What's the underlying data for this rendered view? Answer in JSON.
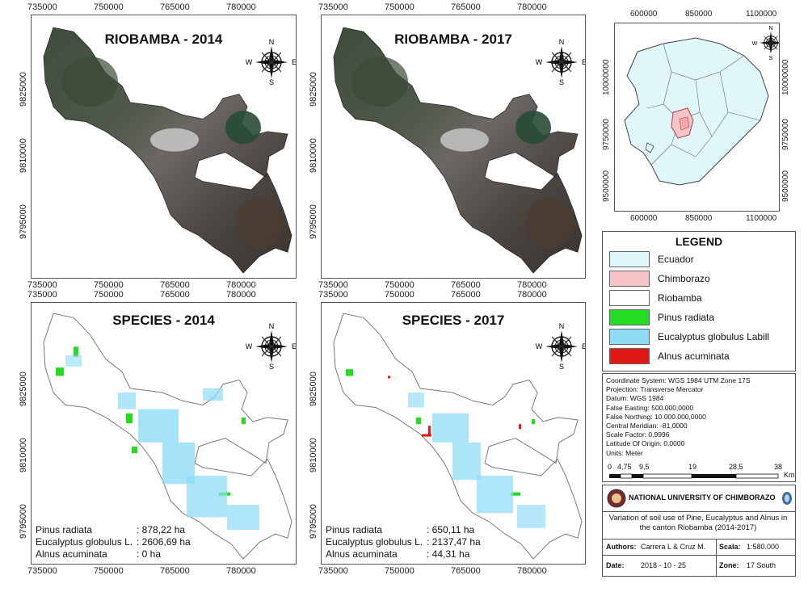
{
  "maps": {
    "sat2014": {
      "title": "RIOBAMBA - 2014"
    },
    "sat2017": {
      "title": "RIOBAMBA - 2017"
    },
    "sp2014": {
      "title": "SPECIES - 2014",
      "stats": [
        {
          "name": "Pinus radiata",
          "value": ": 878,22  ha"
        },
        {
          "name": "Eucalyptus globulus L.",
          "value": ": 2606,69  ha"
        },
        {
          "name": "Alnus acuminata",
          "value": ":  0  ha"
        }
      ]
    },
    "sp2017": {
      "title": "SPECIES - 2017",
      "stats": [
        {
          "name": "Pinus radiata",
          "value": ": 650,11  ha"
        },
        {
          "name": "Eucalyptus globulus L.",
          "value": ": 2137,47  ha"
        },
        {
          "name": "Alnus acuminata",
          "value": ": 44,31  ha"
        }
      ]
    }
  },
  "axes": {
    "x_ticks": [
      "735000",
      "750000",
      "765000",
      "780000"
    ],
    "y_ticks": [
      "9825000",
      "9810000",
      "9795000"
    ],
    "inset_x_ticks": [
      "600000",
      "850000",
      "1100000"
    ],
    "inset_y_ticks": [
      "10000000",
      "9750000",
      "9500000"
    ]
  },
  "compass": {
    "n": "N",
    "s": "S",
    "e": "E",
    "w": "W"
  },
  "legend": {
    "title": "LEGEND",
    "items": [
      {
        "label": "Ecuador",
        "color": "#dff6fb"
      },
      {
        "label": "Chimborazo",
        "color": "#f6c4c6"
      },
      {
        "label": "Riobamba",
        "color": "#ffffff"
      },
      {
        "label": "Pinus radiata",
        "color": "#22dd22"
      },
      {
        "label": "Eucalyptus globulus Labill",
        "color": "#8fdcf6"
      },
      {
        "label": "Alnus acuminata",
        "color": "#e01818"
      }
    ]
  },
  "projection": {
    "lines": [
      "Coordinate System: WGS 1984 UTM Zone 17S",
      "Projection: Transverse Mercator",
      "Datum: WGS 1984",
      "False Easting: 500.000,0000",
      "False Northing: 10.000.000,0000",
      "Central Meridian: -81,0000",
      "Scale Factor: 0,9996",
      "Latitude Of Origin: 0,0000",
      "Units: Meter"
    ]
  },
  "scalebar": {
    "labels": [
      "0",
      "4,75",
      "9,5",
      "19",
      "28,5",
      "38"
    ],
    "unit": "Km"
  },
  "info": {
    "university": "NATIONAL UNIVERSITY OF CHIMBORAZO",
    "description": "Variation of soil use of Pine, Eucalyptus and Alnus in the canton Riobamba (2014-2017)",
    "authors_label": "Authors:",
    "authors": "Carrera L & Cruz M.",
    "scale_label": "Scala:",
    "scale": "1:580.000",
    "date_label": "Date:",
    "date": "2018 - 10 - 25",
    "zone_label": "Zone:",
    "zone": "17 South"
  },
  "colors": {
    "pinus": "#22dd22",
    "eucalyptus": "#8fdcf6",
    "alnus": "#e01818",
    "ecuador": "#dff6fb",
    "chimborazo": "#f6c4c6"
  }
}
